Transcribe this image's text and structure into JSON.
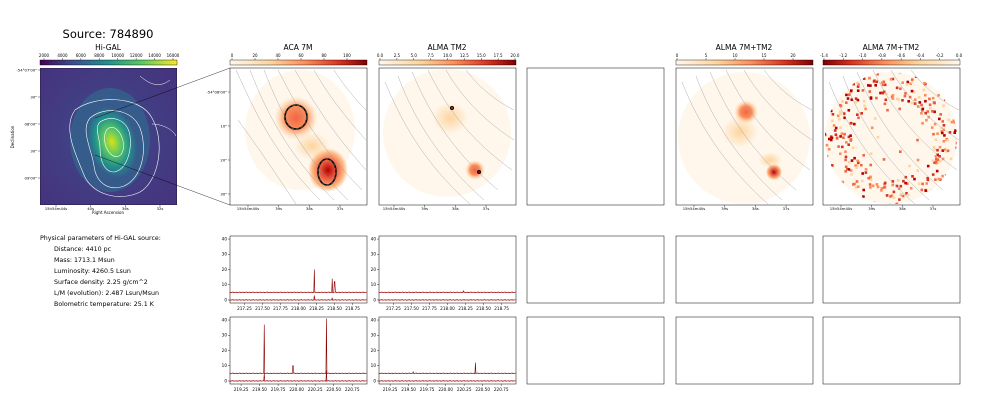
{
  "figure": {
    "title": "Source: 784890"
  },
  "colors": {
    "viridis_top": "#fde725",
    "viridis_bottom": "#440154",
    "orrd_top": "#7f0000",
    "orrd_bottom": "#fff7ec",
    "spectrum_line": "#8b0000",
    "spectrum_baseline": "#ff3b30",
    "contour": "#999999"
  },
  "panels": {
    "higal": {
      "title": "Hi-GAL",
      "xlabel": "Right Ascension",
      "ylabel": "Declination",
      "cbar_ticks": [
        "2000",
        "4000",
        "6000",
        "8000",
        "10000",
        "12000",
        "14000",
        "16000"
      ],
      "xticks": [
        "15h54m44s",
        "40s",
        "36s",
        "32s"
      ],
      "yticks": [
        "-54°07'00\"",
        "30\"",
        "08'00\"",
        "30\"",
        "09'00\""
      ]
    },
    "aca7m": {
      "title": "ACA 7M",
      "cbar_ticks": [
        "0",
        "20",
        "40",
        "60",
        "80",
        "100"
      ],
      "xticks": [
        "15h54m40s",
        "39s",
        "38s",
        "37s"
      ],
      "yticks": [
        "-54°08'00\"",
        "10\"",
        "20\"",
        "30\""
      ]
    },
    "almatm2": {
      "title": "ALMA TM2",
      "cbar_ticks": [
        "0.0",
        "2.5",
        "5.0",
        "7.5",
        "10.0",
        "12.5",
        "15.0",
        "17.5",
        "20.0"
      ],
      "xticks": [
        "15h54m40s",
        "39s",
        "38s",
        "37s"
      ]
    },
    "alma7mtm2": {
      "title": "ALMA 7M+TM2",
      "cbar_ticks": [
        "0",
        "5",
        "10",
        "15",
        "20"
      ],
      "xticks": [
        "15h54m40s",
        "39s",
        "38s",
        "37s"
      ]
    },
    "alma7mtm2_neg": {
      "title": "ALMA 7M+TM2",
      "cbar_ticks": [
        "-1.4",
        "-1.2",
        "-1.0",
        "-0.8",
        "-0.6",
        "-0.4",
        "-0.2",
        "0.0"
      ],
      "xticks": [
        "15h54m40s",
        "39s",
        "38s",
        "37s"
      ]
    }
  },
  "params": {
    "heading": "Physical parameters of Hi-GAL source:",
    "lines": [
      "Distance: 4410 pc",
      "Mass: 1713.1 Msun",
      "Luminosity: 4260.5 Lsun",
      "Surface density: 2.25 g/cm^2",
      "L/M (evolution): 2.487 Lsun/Msun",
      "Bolometric temperature: 25.1 K"
    ]
  },
  "chart_data": [
    {
      "type": "line",
      "id": "spec_aca_1",
      "xlim": [
        217.05,
        218.95
      ],
      "ylim": [
        -2,
        42
      ],
      "xticks": [
        "217.25",
        "217.50",
        "217.75",
        "218.00",
        "218.25",
        "218.50",
        "218.75"
      ],
      "yticks": [
        "0",
        "10",
        "20",
        "30",
        "40"
      ],
      "series": [
        {
          "baseline": 5,
          "peaks": [
            [
              218.22,
              15
            ],
            [
              218.47,
              9
            ],
            [
              218.5,
              7
            ]
          ]
        },
        {
          "baseline": 0,
          "peaks": [
            [
              218.22,
              3
            ],
            [
              218.47,
              1.5
            ]
          ]
        }
      ]
    },
    {
      "type": "line",
      "id": "spec_tm2_1",
      "xlim": [
        217.05,
        218.95
      ],
      "ylim": [
        -2,
        42
      ],
      "xticks": [
        "217.25",
        "217.50",
        "217.75",
        "218.00",
        "218.25",
        "218.50",
        "218.75"
      ],
      "yticks": [
        "0",
        "10",
        "20",
        "30",
        "40"
      ],
      "series": [
        {
          "baseline": 5,
          "peaks": [
            [
              218.22,
              1
            ]
          ]
        },
        {
          "baseline": 0,
          "peaks": []
        }
      ]
    },
    {
      "type": "line",
      "id": "spec_aca_2",
      "xlim": [
        219.1,
        220.95
      ],
      "ylim": [
        -2,
        42
      ],
      "xticks": [
        "219.25",
        "219.50",
        "219.75",
        "220.00",
        "220.25",
        "220.50",
        "220.75"
      ],
      "yticks": [
        "0",
        "10",
        "20",
        "30",
        "40"
      ],
      "series": [
        {
          "baseline": 5,
          "peaks": [
            [
              219.56,
              32
            ],
            [
              219.95,
              5
            ],
            [
              220.4,
              36
            ]
          ]
        },
        {
          "baseline": 0,
          "peaks": [
            [
              219.56,
              5
            ],
            [
              220.4,
              7
            ]
          ]
        }
      ]
    },
    {
      "type": "line",
      "id": "spec_tm2_2",
      "xlim": [
        219.1,
        220.95
      ],
      "ylim": [
        -2,
        42
      ],
      "xticks": [
        "219.25",
        "219.50",
        "219.75",
        "220.00",
        "220.25",
        "220.50",
        "220.75"
      ],
      "yticks": [
        "0",
        "10",
        "20",
        "30",
        "40"
      ],
      "series": [
        {
          "baseline": 5,
          "peaks": [
            [
              219.56,
              1
            ],
            [
              220.4,
              7
            ]
          ]
        },
        {
          "baseline": 0,
          "peaks": []
        }
      ]
    }
  ]
}
